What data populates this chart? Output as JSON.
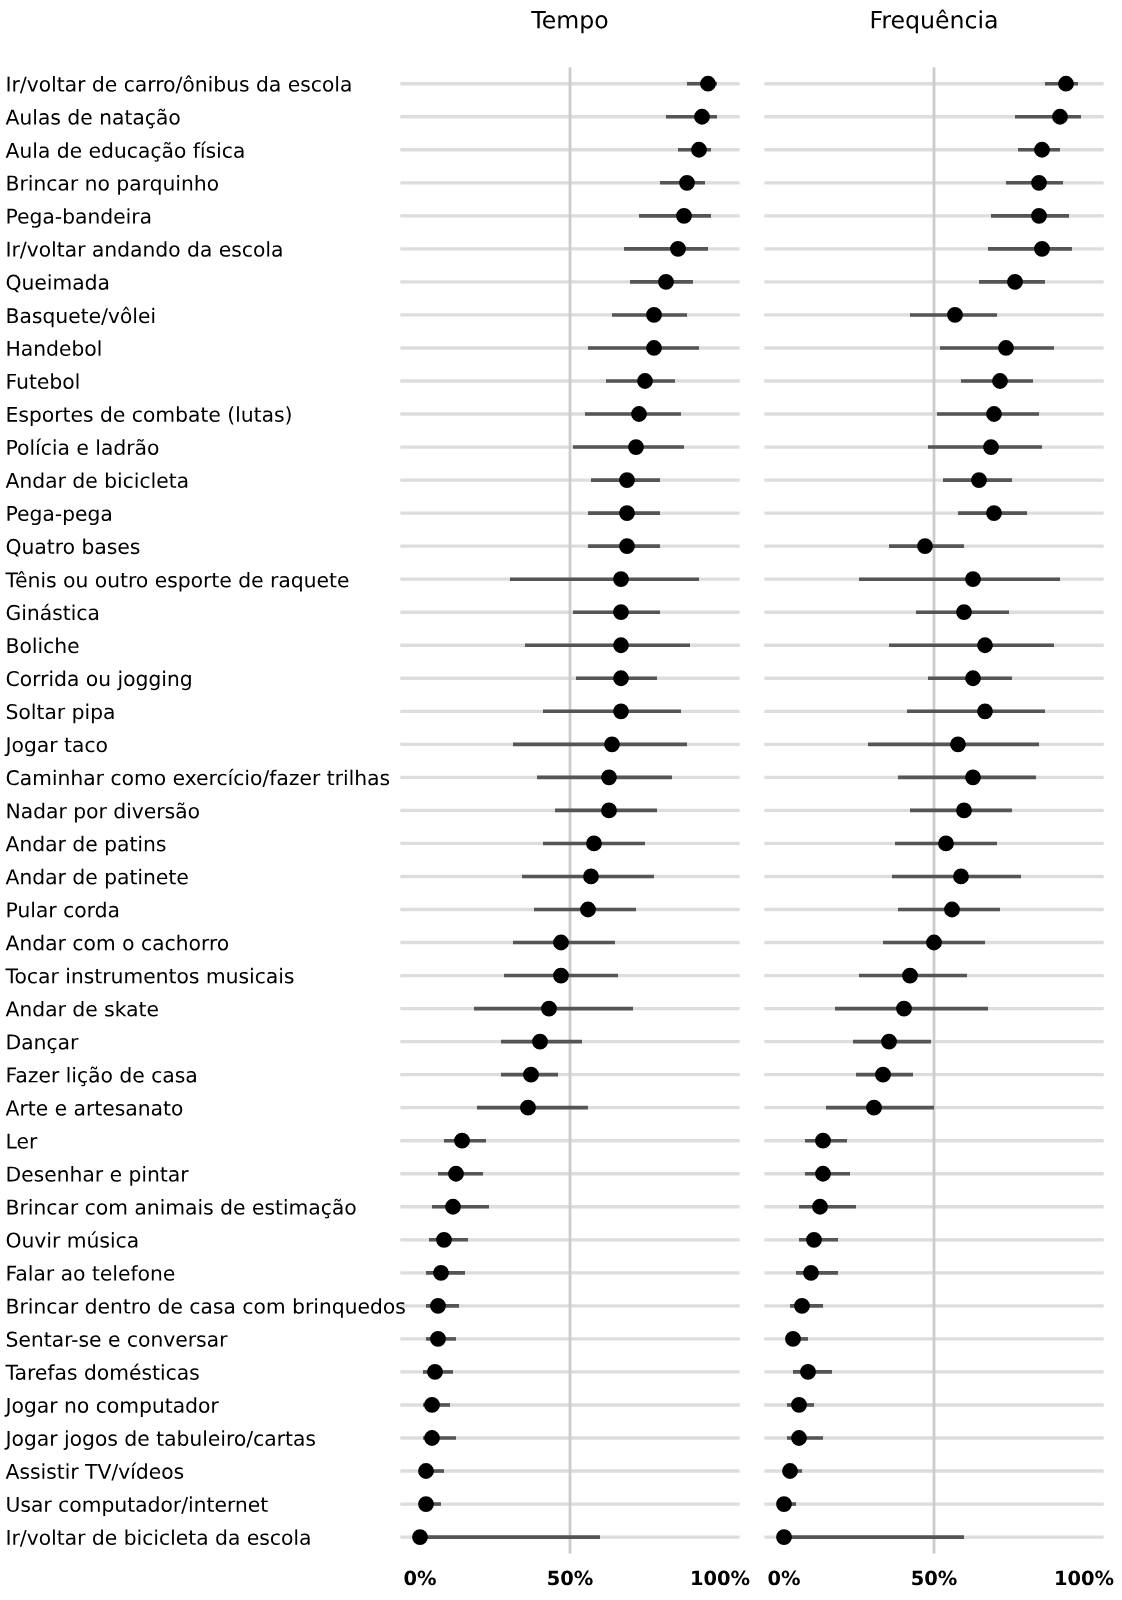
{
  "chart_data": [
    {
      "type": "scatter",
      "title": "Tempo",
      "orientation": "horizontal",
      "categories": [
        "Ir/voltar de carro/ônibus da escola",
        "Aulas de natação",
        "Aula de educação física",
        "Brincar no parquinho",
        "Pega-bandeira",
        "Ir/voltar andando da escola",
        "Queimada",
        "Basquete/vôlei",
        "Handebol",
        "Futebol",
        "Esportes de combate (lutas)",
        "Polícia e ladrão",
        "Andar de bicicleta",
        "Pega-pega",
        "Quatro bases",
        "Tênis ou outro esporte de raquete",
        "Ginástica",
        "Boliche",
        "Corrida ou jogging",
        "Soltar pipa",
        "Jogar taco",
        "Caminhar como exercício/fazer trilhas",
        "Nadar por diversão",
        "Andar de patins",
        "Andar de patinete",
        "Pular corda",
        "Andar com o cachorro",
        "Tocar instrumentos musicais",
        "Andar de skate",
        "Dançar",
        "Fazer lição de casa",
        "Arte e artesanato",
        "Ler",
        "Desenhar e pintar",
        "Brincar com animais de estimação",
        "Ouvir música",
        "Falar ao telefone",
        "Brincar dentro de casa com brinquedos",
        "Sentar-se e conversar",
        "Tarefas domésticas",
        "Jogar no computador",
        "Jogar jogos de tabuleiro/cartas",
        "Assistir TV/vídeos",
        "Usar computador/internet",
        "Ir/voltar de bicicleta da escola"
      ],
      "color": "#000000",
      "values": [
        96,
        94,
        93,
        89,
        88,
        86,
        82,
        78,
        78,
        75,
        73,
        72,
        69,
        69,
        69,
        67,
        67,
        67,
        67,
        67,
        64,
        63,
        63,
        58,
        57,
        56,
        47,
        47,
        43,
        40,
        37,
        36,
        14,
        12,
        11,
        8,
        7,
        6,
        6,
        5,
        4,
        4,
        2,
        2,
        0
      ],
      "errors": [
        [
          89,
          99
        ],
        [
          82,
          99
        ],
        [
          86,
          97
        ],
        [
          80,
          95
        ],
        [
          73,
          97
        ],
        [
          68,
          96
        ],
        [
          70,
          91
        ],
        [
          64,
          89
        ],
        [
          56,
          93
        ],
        [
          62,
          85
        ],
        [
          55,
          87
        ],
        [
          51,
          88
        ],
        [
          57,
          80
        ],
        [
          56,
          80
        ],
        [
          56,
          80
        ],
        [
          30,
          93
        ],
        [
          51,
          80
        ],
        [
          35,
          90
        ],
        [
          52,
          79
        ],
        [
          41,
          87
        ],
        [
          31,
          89
        ],
        [
          39,
          84
        ],
        [
          45,
          79
        ],
        [
          41,
          75
        ],
        [
          34,
          78
        ],
        [
          38,
          72
        ],
        [
          31,
          65
        ],
        [
          28,
          66
        ],
        [
          18,
          71
        ],
        [
          27,
          54
        ],
        [
          27,
          46
        ],
        [
          19,
          56
        ],
        [
          8,
          22
        ],
        [
          6,
          21
        ],
        [
          4,
          23
        ],
        [
          3,
          16
        ],
        [
          2,
          15
        ],
        [
          2,
          13
        ],
        [
          2,
          12
        ],
        [
          1,
          11
        ],
        [
          1,
          10
        ],
        [
          1,
          12
        ],
        [
          1,
          8
        ],
        [
          1,
          7
        ],
        [
          0,
          60
        ]
      ],
      "xlim": [
        0,
        100
      ],
      "xticks": [
        {
          "value": 0,
          "label": "0%"
        },
        {
          "value": 50,
          "label": "50%"
        },
        {
          "value": 100,
          "label": "100%"
        }
      ],
      "ref_lines": [
        {
          "axis": "x",
          "value": 50,
          "color": "#cccccc"
        }
      ],
      "grid": "y",
      "marker": "circle"
    },
    {
      "type": "scatter",
      "title": "Frequência",
      "orientation": "horizontal",
      "categories": [
        null,
        null,
        null,
        null,
        null,
        null,
        null,
        null,
        null,
        null,
        null,
        null,
        null,
        null,
        null,
        null,
        null,
        null,
        null,
        null,
        null,
        null,
        null,
        null,
        null,
        null,
        null,
        null,
        null,
        null,
        null,
        null,
        null,
        null,
        null,
        null,
        null,
        null,
        null,
        null,
        null,
        null,
        null,
        null,
        null
      ],
      "color": "#000000",
      "values": [
        94,
        92,
        86,
        85,
        85,
        86,
        77,
        57,
        74,
        72,
        70,
        69,
        65,
        70,
        47,
        63,
        60,
        67,
        63,
        67,
        58,
        63,
        60,
        54,
        59,
        56,
        50,
        42,
        40,
        35,
        33,
        30,
        13,
        13,
        12,
        10,
        9,
        6,
        3,
        8,
        5,
        5,
        2,
        0,
        0
      ],
      "errors": [
        [
          87,
          98
        ],
        [
          77,
          99
        ],
        [
          78,
          92
        ],
        [
          74,
          93
        ],
        [
          69,
          95
        ],
        [
          68,
          96
        ],
        [
          65,
          87
        ],
        [
          42,
          71
        ],
        [
          52,
          90
        ],
        [
          59,
          83
        ],
        [
          51,
          85
        ],
        [
          48,
          86
        ],
        [
          53,
          76
        ],
        [
          58,
          81
        ],
        [
          35,
          60
        ],
        [
          25,
          92
        ],
        [
          44,
          75
        ],
        [
          35,
          90
        ],
        [
          48,
          76
        ],
        [
          41,
          87
        ],
        [
          28,
          85
        ],
        [
          38,
          84
        ],
        [
          42,
          76
        ],
        [
          37,
          71
        ],
        [
          36,
          79
        ],
        [
          38,
          72
        ],
        [
          33,
          67
        ],
        [
          25,
          61
        ],
        [
          17,
          68
        ],
        [
          23,
          49
        ],
        [
          24,
          43
        ],
        [
          14,
          50
        ],
        [
          7,
          21
        ],
        [
          7,
          22
        ],
        [
          5,
          24
        ],
        [
          5,
          18
        ],
        [
          4,
          18
        ],
        [
          2,
          13
        ],
        [
          1,
          8
        ],
        [
          3,
          16
        ],
        [
          1,
          10
        ],
        [
          1,
          13
        ],
        [
          1,
          6
        ],
        [
          0,
          4
        ],
        [
          0,
          60
        ]
      ],
      "xlim": [
        0,
        100
      ],
      "xticks": [
        {
          "value": 0,
          "label": "0%"
        },
        {
          "value": 50,
          "label": "50%"
        },
        {
          "value": 100,
          "label": "100%"
        }
      ],
      "ref_lines": [
        {
          "axis": "x",
          "value": 50,
          "color": "#cccccc"
        }
      ],
      "grid": "y",
      "marker": "circle",
      "tick_labels": "x"
    }
  ]
}
